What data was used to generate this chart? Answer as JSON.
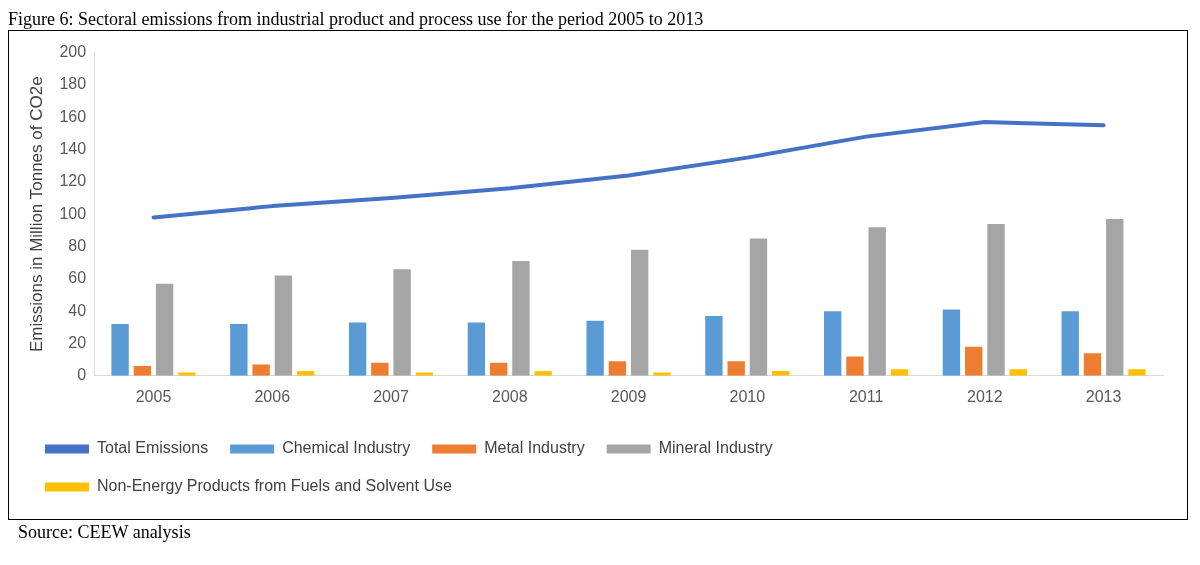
{
  "chart_data": {
    "type": "bar",
    "title": "Figure 6: Sectoral emissions from industrial product and process use for the period 2005 to 2013",
    "ylabel": "Emissions in Million Tonnes of CO2e",
    "categories": [
      "2005",
      "2006",
      "2007",
      "2008",
      "2009",
      "2010",
      "2011",
      "2012",
      "2013"
    ],
    "series": [
      {
        "name": "Chemical Industry",
        "color": "#5b9bd5",
        "values": [
          32,
          32,
          33,
          33,
          34,
          37,
          40,
          41,
          40
        ]
      },
      {
        "name": "Metal Industry",
        "color": "#ed7d31",
        "values": [
          6,
          7,
          8,
          8,
          9,
          9,
          12,
          18,
          14
        ]
      },
      {
        "name": "Mineral Industry",
        "color": "#a5a5a5",
        "values": [
          57,
          62,
          66,
          71,
          78,
          85,
          92,
          94,
          97
        ]
      },
      {
        "name": "Non-Energy Products from Fuels and Solvent Use",
        "color": "#ffc000",
        "values": [
          2,
          3,
          2,
          3,
          2,
          3,
          4,
          4,
          4
        ]
      },
      {
        "name": "Total Emissions",
        "type": "line",
        "color": "#4472c4",
        "values": [
          98,
          105,
          110,
          116,
          124,
          135,
          148,
          157,
          155
        ]
      }
    ],
    "ylim": [
      0,
      200
    ],
    "yticks": [
      0,
      20,
      40,
      60,
      80,
      100,
      120,
      140,
      160,
      180,
      200
    ],
    "grid": false,
    "legend": "bottom",
    "marker": "none",
    "line_style": "solid",
    "annotations": [
      "Source: CEEW analysis"
    ]
  }
}
